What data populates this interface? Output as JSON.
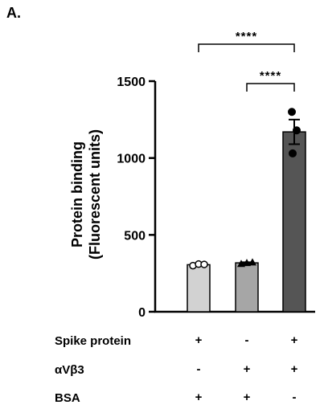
{
  "chart_data": {
    "type": "bar",
    "panel_label": "A.",
    "ylabel_line1": "Protein binding",
    "ylabel_line2": "(Fluorescent units)",
    "ylim": [
      0,
      1500
    ],
    "yticks": [
      0,
      500,
      1000,
      1500
    ],
    "groups": [
      {
        "values": [
          300,
          310,
          308
        ],
        "mean": 306,
        "sem": 5,
        "color": "#d2d2d2",
        "marker": "circle-open"
      },
      {
        "values": [
          312,
          318,
          322
        ],
        "mean": 318,
        "sem": 4,
        "color": "#a6a6a6",
        "marker": "triangle"
      },
      {
        "values": [
          1300,
          1180,
          1030
        ],
        "mean": 1170,
        "sem": 80,
        "color": "#555555",
        "marker": "circle"
      }
    ],
    "significance": [
      {
        "from": 0,
        "to": 2,
        "label": "****"
      },
      {
        "from": 1,
        "to": 2,
        "label": "****"
      }
    ],
    "condition_table": [
      {
        "label": "Spike protein",
        "values": [
          "+",
          "-",
          "+"
        ]
      },
      {
        "label": "αVβ3",
        "values": [
          "-",
          "+",
          "+"
        ]
      },
      {
        "label": "BSA",
        "values": [
          "+",
          "+",
          "-"
        ]
      }
    ]
  }
}
